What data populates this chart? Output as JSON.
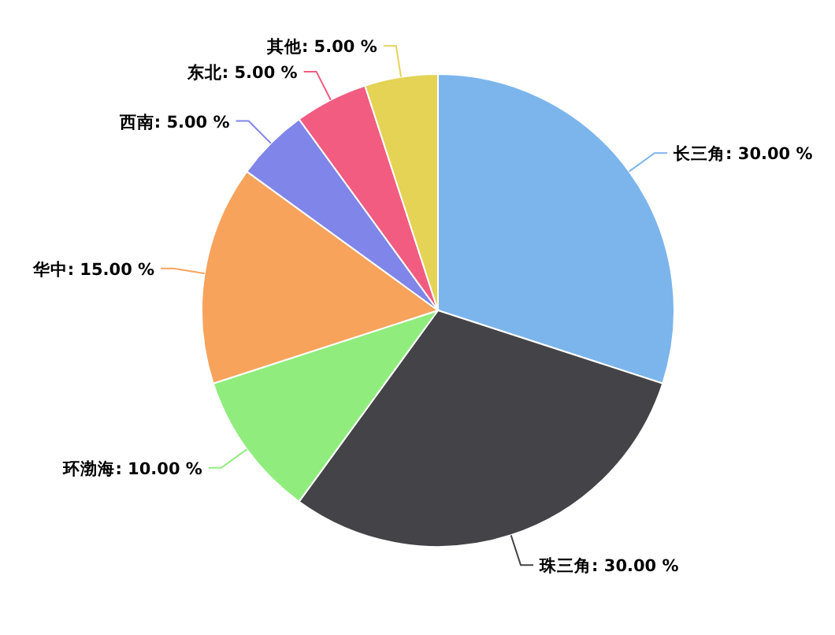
{
  "chart_data": {
    "type": "pie",
    "categories": [
      "长三角",
      "珠三角",
      "环渤海",
      "华中",
      "西南",
      "东北",
      "其他"
    ],
    "values": [
      30,
      30,
      10,
      15,
      5,
      5,
      5
    ],
    "colors": [
      "#7cb5ec",
      "#434348",
      "#90ed7d",
      "#f7a35c",
      "#8085e9",
      "#f15c80",
      "#e4d354"
    ],
    "value_labels": [
      "30.00 %",
      "30.00 %",
      "10.00 %",
      "15.00 %",
      "5.00 %",
      "5.00 %",
      "5.00 %"
    ]
  }
}
